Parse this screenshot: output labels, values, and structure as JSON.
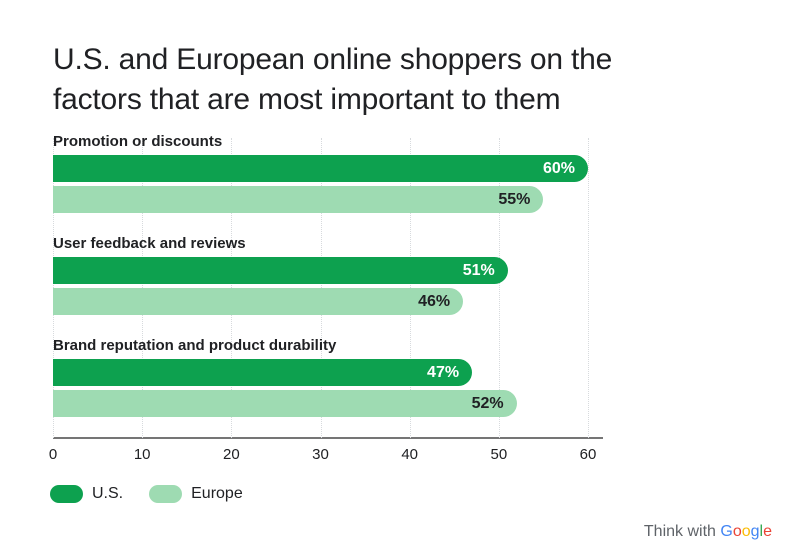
{
  "title": {
    "line1": "U.S. and European online shoppers on the",
    "line2": "factors that are most important to them"
  },
  "chart_data": {
    "type": "bar",
    "orientation": "horizontal",
    "title": "U.S. and European online shoppers on the factors that are most important to them",
    "categories": [
      "Promotion or discounts",
      "User feedback and reviews",
      "Brand reputation and product durability"
    ],
    "series": [
      {
        "name": "U.S.",
        "color": "#0da14f",
        "label_color": "#ffffff",
        "values": [
          60,
          51,
          47
        ]
      },
      {
        "name": "Europe",
        "color": "#9edbb2",
        "label_color": "#202124",
        "values": [
          55,
          46,
          52
        ]
      }
    ],
    "value_suffix": "%",
    "xlabel": "",
    "ylabel": "",
    "xlim": [
      0,
      60
    ],
    "x_ticks": [
      "0",
      "10",
      "20",
      "30",
      "40",
      "50",
      "60"
    ],
    "grid": "vertical-dotted",
    "legend_position": "bottom-left"
  },
  "colors": {
    "us_bar": "#0da14f",
    "europe_bar": "#9edbb2",
    "axis_line": "#757575",
    "gridline": "#d7dadd",
    "text": "#202124",
    "footer_text": "#5f6368"
  },
  "footer": {
    "prefix": "Think with ",
    "brand": "Google",
    "brand_letters": [
      {
        "char": "G",
        "color": "#4285f4"
      },
      {
        "char": "o",
        "color": "#ea4335"
      },
      {
        "char": "o",
        "color": "#fbbc05"
      },
      {
        "char": "g",
        "color": "#4285f4"
      },
      {
        "char": "l",
        "color": "#34a853"
      },
      {
        "char": "e",
        "color": "#ea4335"
      }
    ]
  }
}
